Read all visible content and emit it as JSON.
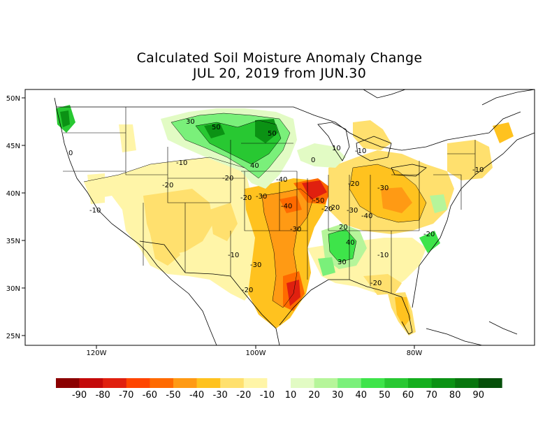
{
  "title": {
    "line1": "Calculated Soil Moisture Anomaly Change",
    "line2": "JUL 20, 2019 from JUN.30"
  },
  "axes": {
    "lat_ticks": [
      "50N",
      "45N",
      "40N",
      "35N",
      "30N",
      "25N"
    ],
    "lon_ticks": [
      "120W",
      "100W",
      "80W"
    ]
  },
  "contour_labels": [
    "30",
    "50",
    "50",
    "0",
    "-10",
    "40",
    "-20",
    "-10",
    "-20",
    "-30",
    "-40",
    "-50",
    "-40",
    "-30",
    "-20",
    "10",
    "-10",
    "-20",
    "-30",
    "-30",
    "-40",
    "-20",
    "20",
    "30",
    "-20",
    "-10",
    "-10",
    "-30",
    "-20",
    "-10",
    "-20",
    "0",
    "-20",
    "40"
  ],
  "colorbar": {
    "labels": [
      "-90",
      "-80",
      "-70",
      "-60",
      "-50",
      "-40",
      "-30",
      "-20",
      "-10",
      "10",
      "20",
      "30",
      "40",
      "50",
      "60",
      "70",
      "80",
      "90"
    ],
    "colors": [
      "#8b0000",
      "#c40a0a",
      "#e0200f",
      "#ff4500",
      "#ff6a00",
      "#ff9a14",
      "#ffc21f",
      "#ffe06e",
      "#fff5a8",
      "#ffffff",
      "#e2fbc4",
      "#b6f59a",
      "#7af07a",
      "#3ee44a",
      "#28c832",
      "#14ae1e",
      "#0b9214",
      "#08760e",
      "#064f0a"
    ]
  }
}
